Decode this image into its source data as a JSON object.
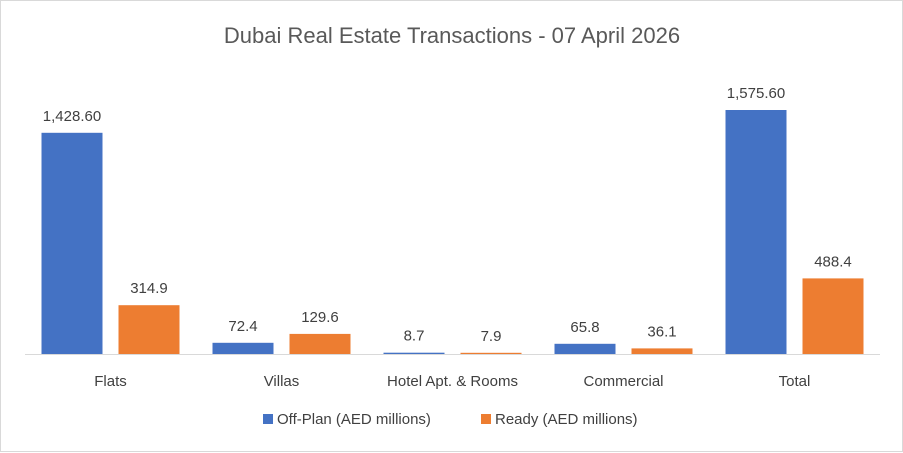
{
  "chart_data": {
    "type": "bar",
    "title": "Dubai Real Estate Transactions - 07 April 2026",
    "categories": [
      "Flats",
      "Villas",
      "Hotel Apt. & Rooms",
      "Commercial",
      "Total"
    ],
    "series": [
      {
        "name": "Off-Plan (AED millions)",
        "color": "#4472C4",
        "values": [
          1428.6,
          72.4,
          8.7,
          65.8,
          1575.6
        ],
        "labels": [
          "1,428.60",
          "72.4",
          "8.7",
          "65.8",
          "1,575.60"
        ]
      },
      {
        "name": "Ready (AED millions)",
        "color": "#ED7D31",
        "values": [
          314.9,
          129.6,
          7.9,
          36.1,
          488.4
        ],
        "labels": [
          "314.9",
          "129.6",
          "7.9",
          "36.1",
          "488.4"
        ]
      }
    ],
    "ylim": [
      0,
      1575.6
    ],
    "grid": false,
    "legend_position": "bottom"
  }
}
